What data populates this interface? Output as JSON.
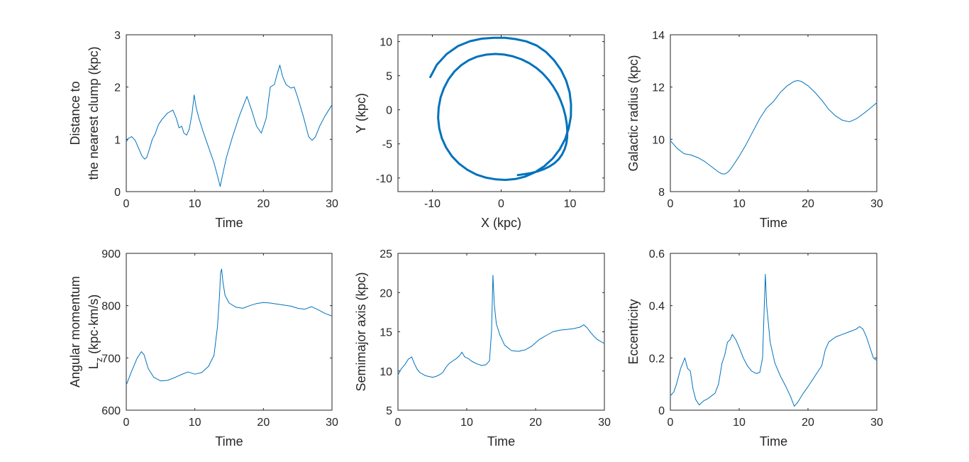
{
  "figure": {
    "line_color": "#0072BD",
    "axis_color": "#262626",
    "background": "#ffffff"
  },
  "chart_data": [
    {
      "type": "line",
      "panel": "distance",
      "xlabel": "Time",
      "ylabel_lines": [
        "Distance to",
        "the nearest clump (kpc)"
      ],
      "xlim": [
        0,
        30
      ],
      "ylim": [
        0,
        3
      ],
      "xticks": [
        0,
        10,
        20,
        30
      ],
      "yticks": [
        0,
        1,
        2,
        3
      ],
      "series": [
        {
          "name": "distance",
          "x": [
            0,
            0.3,
            0.8,
            1.3,
            1.8,
            2.3,
            2.7,
            3.0,
            3.3,
            3.8,
            4.2,
            4.7,
            5.2,
            6.0,
            6.8,
            7.3,
            7.7,
            8.1,
            8.4,
            8.8,
            9.2,
            9.6,
            9.9,
            10.2,
            10.6,
            11.2,
            12.0,
            12.8,
            13.3,
            13.7,
            14.1,
            14.6,
            15.5,
            16.5,
            17.6,
            18.3,
            19.0,
            19.7,
            20.4,
            21.0,
            21.6,
            22.0,
            22.4,
            22.8,
            23.3,
            24.0,
            24.5,
            25.0,
            25.8,
            26.6,
            27.1,
            27.6,
            28.2,
            29.0,
            30.0
          ],
          "y": [
            0.95,
            1.02,
            1.05,
            0.98,
            0.83,
            0.68,
            0.62,
            0.66,
            0.78,
            1.0,
            1.1,
            1.28,
            1.38,
            1.5,
            1.56,
            1.4,
            1.22,
            1.25,
            1.12,
            1.08,
            1.2,
            1.5,
            1.85,
            1.6,
            1.4,
            1.15,
            0.85,
            0.55,
            0.3,
            0.1,
            0.35,
            0.65,
            1.05,
            1.45,
            1.82,
            1.55,
            1.25,
            1.12,
            1.4,
            2.0,
            2.05,
            2.25,
            2.42,
            2.2,
            2.05,
            1.98,
            2.0,
            1.8,
            1.45,
            1.05,
            0.98,
            1.05,
            1.25,
            1.45,
            1.66
          ],
          "width": 1
        }
      ]
    },
    {
      "type": "line",
      "panel": "orbit",
      "xlabel": "X (kpc)",
      "ylabel_lines": [
        "Y (kpc)"
      ],
      "xlim": [
        -15,
        15
      ],
      "ylim": [
        -12,
        11
      ],
      "xticks": [
        -10,
        0,
        10
      ],
      "yticks": [
        -10,
        -5,
        0,
        5,
        10
      ],
      "series": [
        {
          "name": "orbit",
          "x": [
            -10.3,
            -9.34,
            -7.92,
            -6.27,
            -4.55,
            -2.82,
            -1.08,
            0.58,
            2.12,
            3.65,
            5.18,
            6.53,
            7.69,
            8.7,
            9.45,
            9.95,
            10.15,
            10.13,
            9.82,
            9.3,
            8.51,
            7.49,
            6.28,
            4.94,
            3.51,
            2.05,
            0.62,
            -0.73,
            -2.18,
            -3.61,
            -4.91,
            -6.12,
            -7.16,
            -7.99,
            -8.62,
            -9.0,
            -9.16,
            -9.08,
            -8.8,
            -8.31,
            -7.64,
            -6.8,
            -5.81,
            -4.69,
            -3.47,
            -2.19,
            -0.88,
            0.43,
            1.71,
            2.94,
            4.08,
            5.12,
            6.04,
            6.86,
            7.56,
            8.16,
            8.65,
            9.04,
            9.33,
            9.52,
            9.61,
            9.6,
            9.48,
            9.24,
            8.87,
            8.38,
            7.77,
            7.05,
            6.23,
            5.33,
            4.39,
            3.41,
            2.42
          ],
          "y": [
            4.8,
            6.62,
            8.18,
            9.35,
            10.05,
            10.43,
            10.56,
            10.55,
            10.37,
            10.03,
            9.42,
            8.47,
            7.26,
            5.84,
            4.25,
            2.55,
            0.79,
            -0.96,
            -2.68,
            -4.31,
            -5.81,
            -7.14,
            -8.26,
            -9.15,
            -9.79,
            -10.16,
            -10.28,
            -10.21,
            -9.96,
            -9.49,
            -8.8,
            -7.9,
            -6.81,
            -5.56,
            -4.18,
            -2.71,
            -1.2,
            0.33,
            1.81,
            3.21,
            4.49,
            5.61,
            6.54,
            7.27,
            7.79,
            8.09,
            8.19,
            8.1,
            7.84,
            7.41,
            6.84,
            6.14,
            5.33,
            4.42,
            3.44,
            2.41,
            1.33,
            0.24,
            -0.86,
            -1.93,
            -2.97,
            -3.96,
            -4.89,
            -5.75,
            -6.53,
            -7.22,
            -7.81,
            -8.3,
            -8.7,
            -9.02,
            -9.26,
            -9.44,
            -9.58
          ],
          "width": 3
        }
      ]
    },
    {
      "type": "line",
      "panel": "radius",
      "xlabel": "Time",
      "ylabel_lines": [
        "Galactic radius (kpc)"
      ],
      "xlim": [
        0,
        30
      ],
      "ylim": [
        8,
        14
      ],
      "xticks": [
        0,
        10,
        20,
        30
      ],
      "yticks": [
        8,
        10,
        12,
        14
      ],
      "series": [
        {
          "name": "radius",
          "x": [
            0,
            0.5,
            1,
            2,
            3,
            4,
            5,
            6,
            7,
            7.5,
            8,
            8.5,
            9,
            10,
            11,
            12,
            13,
            14,
            15,
            16,
            17,
            18,
            18.5,
            19,
            20,
            21,
            22,
            23,
            24,
            25,
            26,
            27,
            28,
            29,
            30
          ],
          "y": [
            9.95,
            9.8,
            9.65,
            9.45,
            9.4,
            9.3,
            9.15,
            8.95,
            8.75,
            8.68,
            8.68,
            8.78,
            8.95,
            9.35,
            9.8,
            10.3,
            10.8,
            11.2,
            11.45,
            11.8,
            12.05,
            12.22,
            12.25,
            12.22,
            12.05,
            11.8,
            11.5,
            11.15,
            10.9,
            10.73,
            10.67,
            10.78,
            10.97,
            11.18,
            11.4
          ],
          "width": 1
        }
      ]
    },
    {
      "type": "line",
      "panel": "angular-momentum",
      "xlabel": "Time",
      "ylabel_lines": [
        "Angular momentum",
        "L_z (kpc·km/s)"
      ],
      "ylabel_rich": {
        "prefix": "L",
        "subscript": "z",
        "suffix": " (kpc·km/s)"
      },
      "xlim": [
        0,
        30
      ],
      "ylim": [
        600,
        900
      ],
      "xticks": [
        0,
        10,
        20,
        30
      ],
      "yticks": [
        600,
        700,
        800,
        900
      ],
      "series": [
        {
          "name": "Lz",
          "x": [
            0,
            0.8,
            1.6,
            2.2,
            2.6,
            3.2,
            4.0,
            5.0,
            6.0,
            7.0,
            8.0,
            9.0,
            10.0,
            11.0,
            12.0,
            12.8,
            13.3,
            13.6,
            13.75,
            13.9,
            14.1,
            14.4,
            15.0,
            16.0,
            17.0,
            18.0,
            19.0,
            20.0,
            21.0,
            22.0,
            23.0,
            24.0,
            25.0,
            26.0,
            27.0,
            28.0,
            29.0,
            30.0
          ],
          "y": [
            648,
            675,
            700,
            712,
            706,
            680,
            663,
            656,
            657,
            662,
            668,
            673,
            669,
            672,
            684,
            705,
            760,
            820,
            862,
            870,
            845,
            820,
            805,
            797,
            795,
            800,
            804,
            806,
            805,
            803,
            801,
            799,
            795,
            793,
            798,
            792,
            785,
            780
          ],
          "width": 1
        }
      ]
    },
    {
      "type": "line",
      "panel": "semimajor-axis",
      "xlabel": "Time",
      "ylabel_lines": [
        "Semimajor axis (kpc)"
      ],
      "xlim": [
        0,
        30
      ],
      "ylim": [
        5,
        25
      ],
      "xticks": [
        0,
        10,
        20,
        30
      ],
      "yticks": [
        5,
        10,
        15,
        20,
        25
      ],
      "series": [
        {
          "name": "semimajor",
          "x": [
            0,
            0.5,
            1.0,
            1.5,
            2.0,
            2.4,
            2.8,
            3.2,
            3.6,
            4.0,
            4.5,
            5.0,
            5.5,
            6.0,
            6.5,
            7.0,
            7.5,
            8.0,
            8.5,
            9.0,
            9.3,
            9.7,
            10.2,
            10.8,
            11.5,
            12.2,
            12.8,
            13.3,
            13.6,
            13.8,
            14.0,
            14.3,
            14.8,
            15.5,
            16.5,
            17.5,
            18.5,
            19.5,
            20.5,
            21.5,
            22.5,
            23.5,
            24.5,
            25.5,
            26.5,
            27.0,
            27.5,
            28.0,
            28.5,
            29.0,
            30.0
          ],
          "y": [
            9.5,
            10.3,
            10.8,
            11.5,
            11.8,
            10.9,
            10.2,
            9.8,
            9.6,
            9.4,
            9.3,
            9.2,
            9.3,
            9.5,
            9.8,
            10.5,
            11.0,
            11.3,
            11.6,
            12.0,
            12.4,
            11.8,
            11.6,
            11.2,
            10.9,
            10.7,
            10.8,
            11.3,
            15.0,
            22.2,
            18.5,
            16.0,
            14.6,
            13.3,
            12.6,
            12.5,
            12.7,
            13.2,
            14.0,
            14.5,
            15.0,
            15.2,
            15.3,
            15.4,
            15.6,
            15.9,
            15.5,
            14.9,
            14.4,
            14.0,
            13.5
          ],
          "width": 1
        }
      ]
    },
    {
      "type": "line",
      "panel": "eccentricity",
      "xlabel": "Time",
      "ylabel_lines": [
        "Eccentricity"
      ],
      "xlim": [
        0,
        30
      ],
      "ylim": [
        0,
        0.6
      ],
      "xticks": [
        0,
        10,
        20,
        30
      ],
      "yticks": [
        0,
        0.2,
        0.4,
        0.6
      ],
      "yticklabels": [
        "0",
        "0.2",
        "0.4",
        "0.6"
      ],
      "series": [
        {
          "name": "eccentricity",
          "x": [
            0,
            0.5,
            0.9,
            1.2,
            1.5,
            1.8,
            2.1,
            2.5,
            2.9,
            3.3,
            3.7,
            4.2,
            4.8,
            5.5,
            6.0,
            6.5,
            7.0,
            7.5,
            7.9,
            8.3,
            8.7,
            9.0,
            9.5,
            10.0,
            10.6,
            11.2,
            11.8,
            12.5,
            13.0,
            13.4,
            13.65,
            13.8,
            14.0,
            14.5,
            15.2,
            16.0,
            16.8,
            17.5,
            18.0,
            18.5,
            19.2,
            20.0,
            21.0,
            22.0,
            22.5,
            23.0,
            24.0,
            25.0,
            26.0,
            27.0,
            27.5,
            28.0,
            28.5,
            29.0,
            29.5,
            30.0
          ],
          "y": [
            0.055,
            0.07,
            0.1,
            0.13,
            0.16,
            0.18,
            0.2,
            0.16,
            0.15,
            0.08,
            0.04,
            0.02,
            0.035,
            0.045,
            0.055,
            0.065,
            0.1,
            0.18,
            0.21,
            0.26,
            0.27,
            0.29,
            0.27,
            0.24,
            0.2,
            0.17,
            0.15,
            0.14,
            0.145,
            0.2,
            0.4,
            0.52,
            0.4,
            0.26,
            0.18,
            0.13,
            0.09,
            0.05,
            0.015,
            0.03,
            0.06,
            0.09,
            0.13,
            0.17,
            0.23,
            0.26,
            0.28,
            0.29,
            0.3,
            0.31,
            0.32,
            0.31,
            0.28,
            0.24,
            0.2,
            0.19
          ],
          "width": 1
        }
      ]
    }
  ]
}
